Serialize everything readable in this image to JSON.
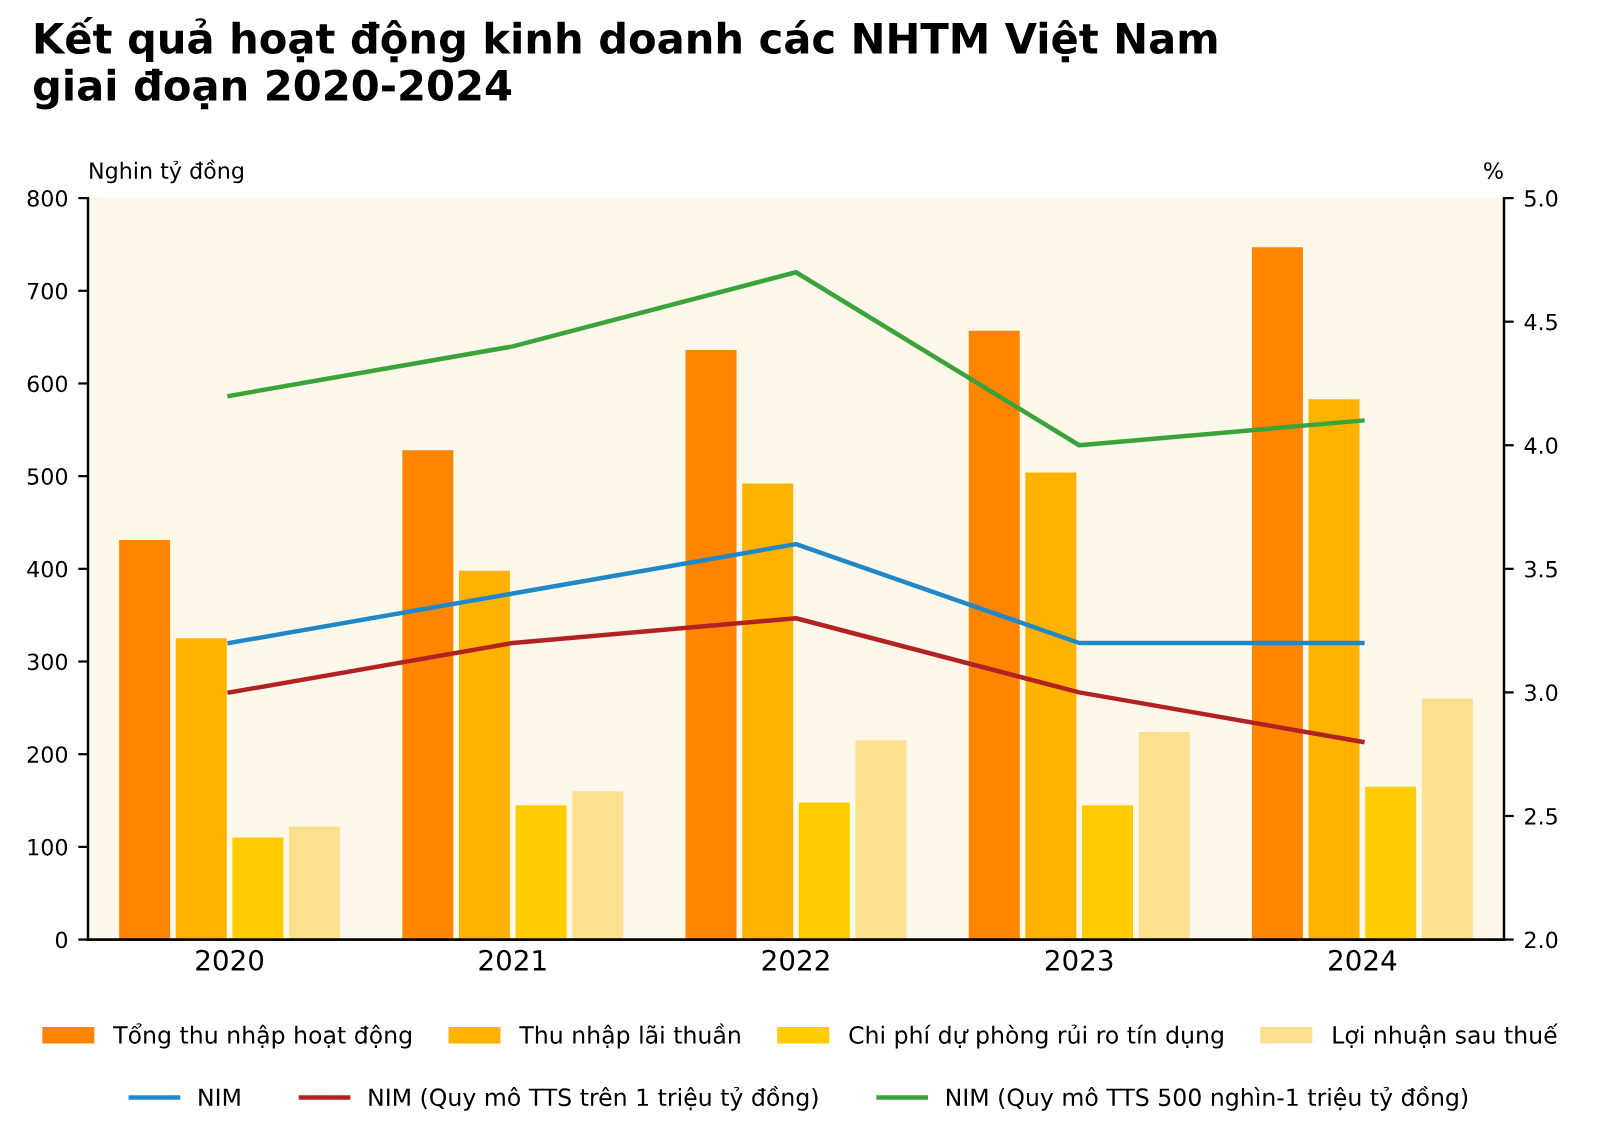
{
  "chart_data": {
    "type": "bar",
    "title": "Kết quả hoạt động kinh doanh các NHTM Việt Nam\ngiai đoạn 2020-2024",
    "ylabel": "Nghin tỷ đồng",
    "y2label": "%",
    "categories": [
      "2020",
      "2021",
      "2022",
      "2023",
      "2024"
    ],
    "series": [
      {
        "name": "Tổng thu nhập hoạt động",
        "color": "#ff8400",
        "values": [
          431,
          528,
          636,
          657,
          747
        ]
      },
      {
        "name": "Thu nhập lãi thuần",
        "color": "#ffb300",
        "values": [
          325,
          398,
          492,
          504,
          583
        ]
      },
      {
        "name": "Chi phí dự phòng rủi ro tín dụng",
        "color": "#ffcc00",
        "values": [
          110,
          145,
          148,
          145,
          165
        ]
      },
      {
        "name": "Lợi nhuận sau thuế",
        "color": "#fde08f",
        "values": [
          122,
          160,
          215,
          224,
          260
        ]
      },
      {
        "name": "NIM",
        "color": "#1e88c8",
        "type": "line",
        "axis": "y2",
        "values": [
          3.2,
          3.4,
          3.6,
          3.2,
          3.2
        ]
      },
      {
        "name": "NIM (Quy mô TTS trên 1 triệu tỷ đồng)",
        "color": "#b22222",
        "type": "line",
        "axis": "y2",
        "values": [
          3.0,
          3.2,
          3.3,
          3.0,
          2.8
        ]
      },
      {
        "name": "NIM (Quy mô TTS 500 nghìn-1 triệu tỷ đồng)",
        "color": "#3aa33a",
        "type": "line",
        "axis": "y2",
        "values": [
          4.2,
          4.4,
          4.7,
          4.0,
          4.1
        ]
      }
    ],
    "ylim": [
      0,
      800
    ],
    "yticks": [
      0,
      100,
      200,
      300,
      400,
      500,
      600,
      700,
      800
    ],
    "y2lim": [
      2.0,
      5.0
    ],
    "y2ticks": [
      {
        "value": 2.0,
        "label": "2.0"
      },
      {
        "value": 2.5,
        "label": "2.5"
      },
      {
        "value": 3.0,
        "label": "3.0"
      },
      {
        "value": 3.5,
        "label": "3.5"
      },
      {
        "value": 4.0,
        "label": "4.0"
      },
      {
        "value": 4.5,
        "label": "4.5"
      },
      {
        "value": 5.0,
        "label": "5.0"
      }
    ],
    "grid": false,
    "legend": "bottom"
  }
}
